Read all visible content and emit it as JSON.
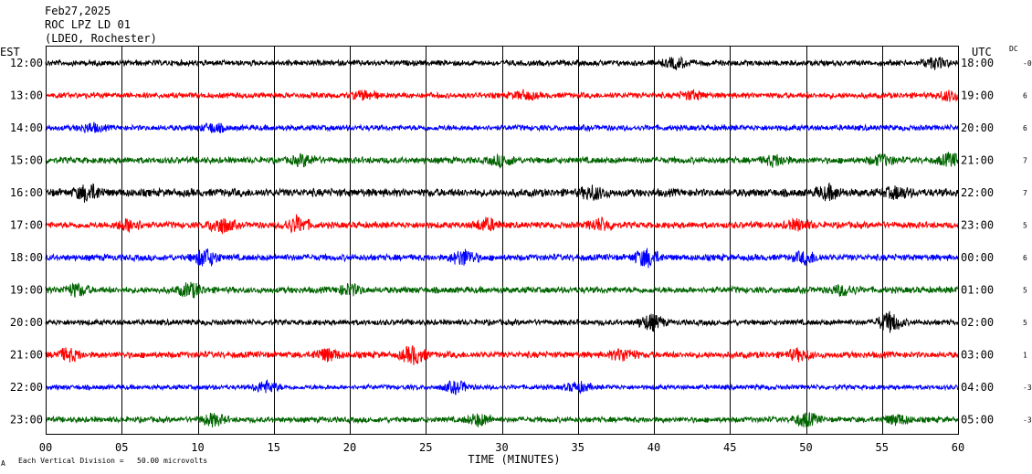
{
  "header": {
    "date": "Feb27,2025",
    "station": "ROC LPZ LD 01",
    "network": "(LDEO, Rochester)"
  },
  "chart_data": {
    "type": "line",
    "title": "",
    "xlabel": "TIME (MINUTES)",
    "left_axis_label": "EST",
    "right_axis_label": "UTC",
    "dc_label": "DC",
    "xlim": [
      0,
      60
    ],
    "x_ticks": [
      0,
      5,
      10,
      15,
      20,
      25,
      30,
      35,
      40,
      45,
      50,
      55,
      60
    ],
    "x_tick_labels": [
      "00",
      "05",
      "10",
      "15",
      "20",
      "25",
      "30",
      "35",
      "40",
      "45",
      "50",
      "55",
      "60"
    ],
    "grid": true,
    "scale_note": "Each Vertical Division =   50.00 microvolts",
    "corner_mark": "A",
    "colors": [
      "#000000",
      "#ff0000",
      "#0000ff",
      "#006400"
    ],
    "rows": [
      {
        "est": "12:00",
        "utc": "18:00",
        "dc": "-0",
        "color": "#000000",
        "amp": 3.5,
        "events": [
          [
            41.5,
            5
          ],
          [
            58.5,
            5
          ]
        ]
      },
      {
        "est": "13:00",
        "utc": "19:00",
        "dc": "6",
        "color": "#ff0000",
        "amp": 3.5,
        "events": [
          [
            21,
            4
          ],
          [
            31.5,
            4
          ],
          [
            42.5,
            4
          ],
          [
            59.5,
            5
          ]
        ]
      },
      {
        "est": "14:00",
        "utc": "20:00",
        "dc": "6",
        "color": "#0000ff",
        "amp": 3.5,
        "events": [
          [
            3,
            4
          ],
          [
            11,
            4
          ]
        ]
      },
      {
        "est": "15:00",
        "utc": "21:00",
        "dc": "7",
        "color": "#006400",
        "amp": 4,
        "events": [
          [
            17,
            5
          ],
          [
            30,
            5
          ],
          [
            48,
            5
          ],
          [
            55,
            5
          ],
          [
            59.5,
            6
          ]
        ]
      },
      {
        "est": "16:00",
        "utc": "22:00",
        "dc": "7",
        "color": "#000000",
        "amp": 5,
        "events": [
          [
            2.8,
            8
          ],
          [
            36,
            6
          ],
          [
            51.5,
            6
          ],
          [
            56,
            5
          ]
        ]
      },
      {
        "est": "17:00",
        "utc": "23:00",
        "dc": "5",
        "color": "#ff0000",
        "amp": 4,
        "events": [
          [
            5.5,
            6
          ],
          [
            11.5,
            8
          ],
          [
            16.5,
            8
          ],
          [
            29,
            6
          ],
          [
            36.5,
            6
          ],
          [
            49.5,
            5
          ]
        ]
      },
      {
        "est": "18:00",
        "utc": "00:00",
        "dc": "6",
        "color": "#0000ff",
        "amp": 4,
        "events": [
          [
            10.5,
            9
          ],
          [
            27.5,
            8
          ],
          [
            39.5,
            9
          ],
          [
            50,
            6
          ]
        ]
      },
      {
        "est": "19:00",
        "utc": "01:00",
        "dc": "5",
        "color": "#006400",
        "amp": 4,
        "events": [
          [
            2,
            6
          ],
          [
            9.5,
            7
          ],
          [
            20,
            5
          ],
          [
            52.5,
            5
          ]
        ]
      },
      {
        "est": "20:00",
        "utc": "02:00",
        "dc": "5",
        "color": "#000000",
        "amp": 3.5,
        "events": [
          [
            39.8,
            8
          ],
          [
            55.5,
            10
          ]
        ]
      },
      {
        "est": "21:00",
        "utc": "03:00",
        "dc": "1",
        "color": "#ff0000",
        "amp": 4,
        "events": [
          [
            1.5,
            6
          ],
          [
            18.5,
            6
          ],
          [
            24.2,
            9
          ],
          [
            38,
            6
          ],
          [
            49.5,
            5
          ]
        ]
      },
      {
        "est": "22:00",
        "utc": "04:00",
        "dc": "-3",
        "color": "#0000ff",
        "amp": 3,
        "events": [
          [
            14.5,
            6
          ],
          [
            27,
            6
          ],
          [
            35,
            5
          ]
        ]
      },
      {
        "est": "23:00",
        "utc": "05:00",
        "dc": "-3",
        "color": "#006400",
        "amp": 3.5,
        "events": [
          [
            11,
            6
          ],
          [
            28.5,
            6
          ],
          [
            50,
            7
          ],
          [
            56,
            5
          ]
        ]
      }
    ]
  }
}
